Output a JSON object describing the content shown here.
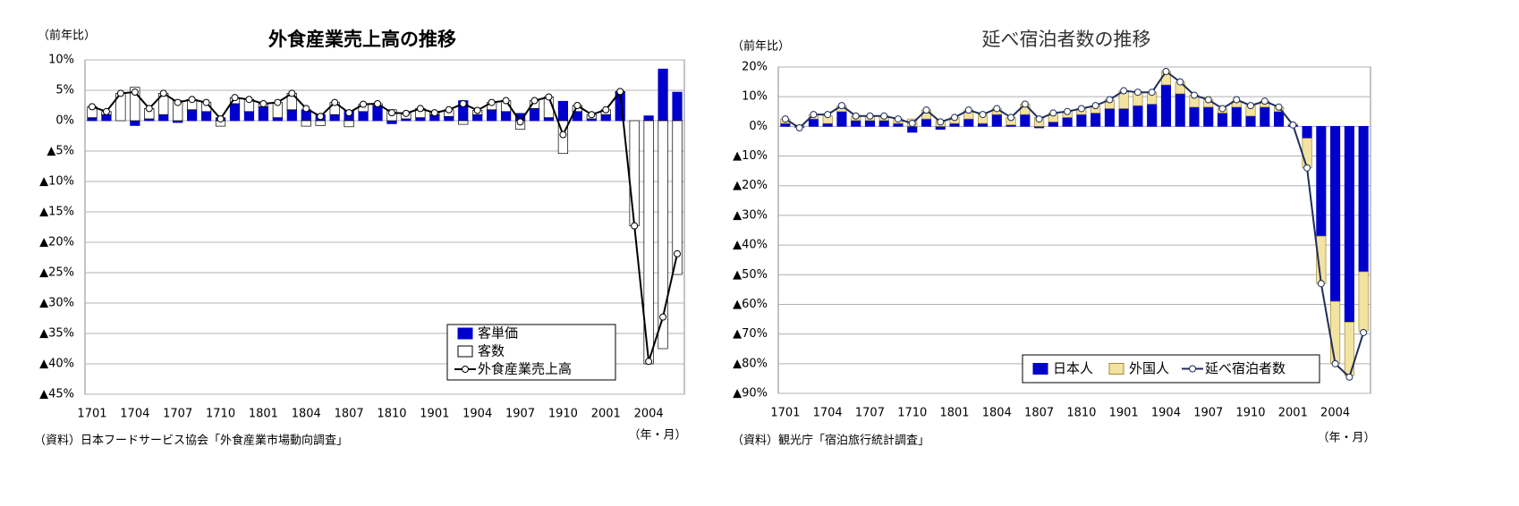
{
  "chart_data": [
    {
      "type": "bar",
      "title": "外食産業売上高の推移",
      "y_label": "（前年比）",
      "x_label": "（年・月）",
      "source": "（資料）日本フードサービス協会「外食産業市場動向調査」",
      "categories": [
        "1701",
        null,
        null,
        "1704",
        null,
        null,
        "1707",
        null,
        null,
        "1710",
        null,
        null,
        "1801",
        null,
        null,
        "1804",
        null,
        null,
        "1807",
        null,
        null,
        "1810",
        null,
        null,
        "1901",
        null,
        null,
        "1904",
        null,
        null,
        "1907",
        null,
        null,
        "1910",
        null,
        null,
        "2001",
        null,
        null,
        "2004",
        null,
        null
      ],
      "series": [
        {
          "name": "客単価",
          "type": "bar",
          "color": "#0000cc",
          "values": [
            0.5,
            1.0,
            0.0,
            -0.8,
            0.3,
            1.0,
            -0.3,
            1.8,
            1.5,
            0.5,
            2.8,
            1.5,
            2.3,
            0.5,
            1.8,
            1.8,
            1.0,
            1.0,
            1.7,
            1.5,
            2.5,
            -0.5,
            0.3,
            0.5,
            1.0,
            0.7,
            3.3,
            1.0,
            1.8,
            1.5,
            1.2,
            2.0,
            0.5,
            3.2,
            1.5,
            0.3,
            1.0,
            4.7,
            0.0,
            0.8,
            8.5,
            4.7
          ]
        },
        {
          "name": "客数",
          "type": "bar",
          "color": "#ffffff",
          "values": [
            1.8,
            0.5,
            4.5,
            5.5,
            1.7,
            3.5,
            3.3,
            1.7,
            1.5,
            -0.9,
            1.0,
            2.0,
            0.5,
            2.5,
            2.7,
            -0.9,
            -0.8,
            2.0,
            -1.0,
            1.2,
            0.3,
            1.8,
            0.9,
            1.5,
            0.3,
            1.1,
            -0.6,
            0.7,
            1.2,
            1.8,
            -1.4,
            1.3,
            3.4,
            -5.4,
            1.0,
            0.7,
            0.8,
            0.1,
            -17.3,
            -40.0,
            -37.5,
            -25.3
          ]
        },
        {
          "name": "外食産業売上高",
          "type": "line",
          "color": "#000000",
          "values": [
            2.3,
            1.5,
            4.5,
            4.7,
            2.0,
            4.5,
            3.0,
            3.5,
            3.0,
            0.3,
            3.8,
            3.5,
            2.8,
            3.0,
            4.5,
            2.0,
            0.7,
            3.0,
            1.3,
            2.7,
            2.8,
            1.3,
            1.2,
            2.0,
            1.3,
            1.8,
            2.8,
            1.7,
            3.0,
            3.3,
            -0.2,
            3.3,
            3.9,
            -2.3,
            2.5,
            1.0,
            1.8,
            4.8,
            -17.3,
            -39.6,
            -32.3,
            -21.9
          ]
        }
      ],
      "ylim": [
        -45,
        10
      ],
      "yticks": [
        {
          "value": 10,
          "label": "10%"
        },
        {
          "value": 5,
          "label": "5%"
        },
        {
          "value": 0,
          "label": "0%"
        },
        {
          "value": -5,
          "label": "▲5%"
        },
        {
          "value": -10,
          "label": "▲10%"
        },
        {
          "value": -15,
          "label": "▲15%"
        },
        {
          "value": -20,
          "label": "▲20%"
        },
        {
          "value": -25,
          "label": "▲25%"
        },
        {
          "value": -30,
          "label": "▲30%"
        },
        {
          "value": -35,
          "label": "▲35%"
        },
        {
          "value": -40,
          "label": "▲40%"
        },
        {
          "value": -45,
          "label": "▲45%"
        }
      ],
      "grid": true,
      "stacked": true,
      "legend": "bottom-right"
    },
    {
      "type": "bar",
      "title": "延べ宿泊者数の推移",
      "y_label": "（前年比）",
      "x_label": "（年・月）",
      "source": "（資料）観光庁「宿泊旅行統計調査」",
      "categories": [
        "1701",
        null,
        null,
        "1704",
        null,
        null,
        "1707",
        null,
        null,
        "1710",
        null,
        null,
        "1801",
        null,
        null,
        "1804",
        null,
        null,
        "1807",
        null,
        null,
        "1810",
        null,
        null,
        "1901",
        null,
        null,
        "1904",
        null,
        null,
        "1907",
        null,
        null,
        "1910",
        null,
        null,
        "2001",
        null,
        null,
        "2004",
        null,
        null
      ],
      "series": [
        {
          "name": "日本人",
          "type": "bar",
          "color": "#0000cc",
          "values": [
            1.0,
            -0.3,
            2.5,
            1.0,
            5.0,
            2.0,
            2.0,
            2.0,
            1.0,
            -2.0,
            2.5,
            -1.0,
            1.0,
            2.5,
            1.0,
            4.0,
            0.5,
            4.0,
            -0.5,
            1.5,
            3.0,
            4.0,
            4.5,
            6.0,
            6.0,
            7.0,
            7.5,
            14.0,
            11.0,
            6.5,
            6.5,
            4.5,
            6.5,
            3.5,
            6.5,
            5.0,
            0.5,
            -4.0,
            -37.0,
            -59.0,
            -66.0,
            -49.0
          ]
        },
        {
          "name": "外国人",
          "type": "bar",
          "color": "#f3e3a2",
          "values": [
            1.5,
            0.2,
            1.5,
            2.5,
            2.0,
            1.5,
            1.5,
            1.5,
            1.5,
            2.5,
            3.0,
            2.0,
            2.0,
            3.0,
            3.0,
            2.0,
            2.5,
            3.5,
            3.0,
            3.0,
            2.0,
            2.0,
            2.5,
            3.0,
            6.0,
            4.5,
            4.0,
            4.5,
            4.0,
            4.0,
            2.5,
            1.5,
            2.0,
            3.5,
            2.0,
            1.5,
            0.3,
            -10.0,
            -16.0,
            -21.0,
            -18.0,
            -20.0
          ]
        },
        {
          "name": "延べ宿泊者数",
          "type": "line",
          "color": "#1f2d5a",
          "values": [
            2.5,
            -0.5,
            4.0,
            4.0,
            7.0,
            3.5,
            3.5,
            3.5,
            2.5,
            1.0,
            5.5,
            1.5,
            3.0,
            5.5,
            4.0,
            6.0,
            3.0,
            7.5,
            2.5,
            4.5,
            5.0,
            6.0,
            7.0,
            9.0,
            12.0,
            11.5,
            11.5,
            18.5,
            15.0,
            10.5,
            9.0,
            6.0,
            9.0,
            7.0,
            8.5,
            6.5,
            0.5,
            -14.0,
            -53.0,
            -80.0,
            -84.5,
            -69.5
          ]
        }
      ],
      "ylim": [
        -90,
        20
      ],
      "yticks": [
        {
          "value": 20,
          "label": "20%"
        },
        {
          "value": 10,
          "label": "10%"
        },
        {
          "value": 0,
          "label": "0%"
        },
        {
          "value": -10,
          "label": "▲10%"
        },
        {
          "value": -20,
          "label": "▲20%"
        },
        {
          "value": -30,
          "label": "▲30%"
        },
        {
          "value": -40,
          "label": "▲40%"
        },
        {
          "value": -50,
          "label": "▲50%"
        },
        {
          "value": -60,
          "label": "▲60%"
        },
        {
          "value": -70,
          "label": "▲70%"
        },
        {
          "value": -80,
          "label": "▲80%"
        },
        {
          "value": -90,
          "label": "▲90%"
        }
      ],
      "grid": true,
      "stacked": true,
      "legend": "bottom-right"
    }
  ]
}
